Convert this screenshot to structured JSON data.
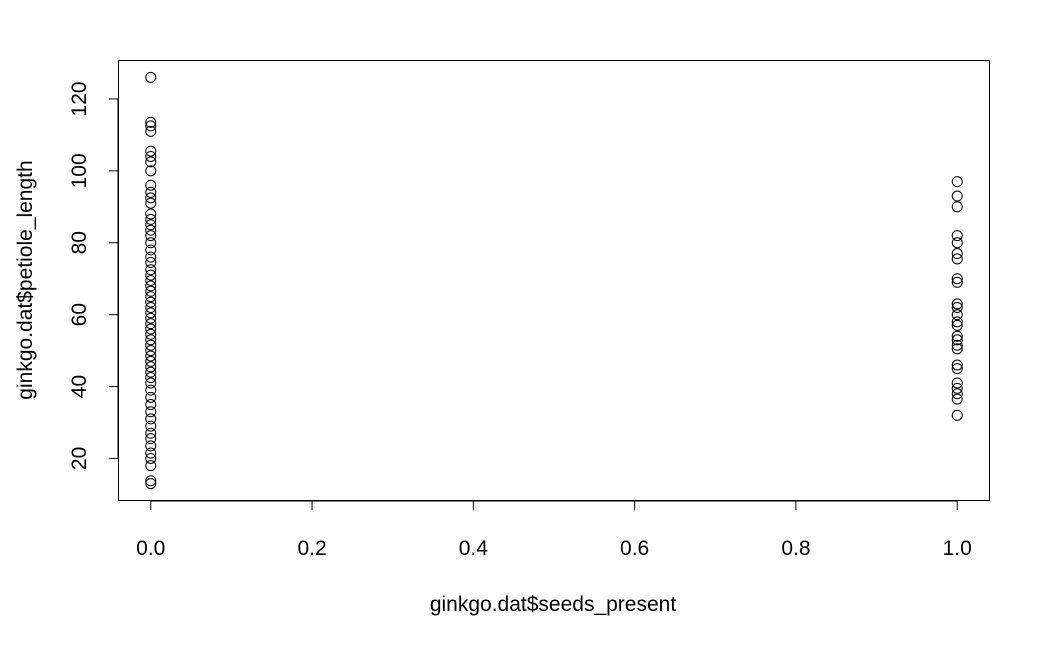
{
  "chart_data": {
    "type": "scatter",
    "title": "",
    "xlabel": "ginkgo.dat$seeds_present",
    "ylabel": "ginkgo.dat$petiole_length",
    "xlim": [
      -0.04,
      1.04
    ],
    "ylim": [
      8.3,
      130.7
    ],
    "xticks": [
      0.0,
      0.2,
      0.4,
      0.6,
      0.8,
      1.0
    ],
    "xtick_labels": [
      "0.0",
      "0.2",
      "0.4",
      "0.6",
      "0.8",
      "1.0"
    ],
    "yticks": [
      20,
      40,
      60,
      80,
      100,
      120
    ],
    "ytick_labels": [
      "20",
      "40",
      "60",
      "80",
      "100",
      "120"
    ],
    "grid": false,
    "legend": "none",
    "marker": "open-circle",
    "colors": {
      "point": "#000000",
      "axis": "#000000",
      "background": "#ffffff"
    },
    "points": [
      {
        "x": 0,
        "y": 126
      },
      {
        "x": 0,
        "y": 113.5
      },
      {
        "x": 0,
        "y": 112.5
      },
      {
        "x": 0,
        "y": 111
      },
      {
        "x": 0,
        "y": 105.5
      },
      {
        "x": 0,
        "y": 104
      },
      {
        "x": 0,
        "y": 102.5
      },
      {
        "x": 0,
        "y": 100
      },
      {
        "x": 0,
        "y": 96
      },
      {
        "x": 0,
        "y": 94
      },
      {
        "x": 0,
        "y": 92.5
      },
      {
        "x": 0,
        "y": 91
      },
      {
        "x": 0,
        "y": 88
      },
      {
        "x": 0,
        "y": 86.5
      },
      {
        "x": 0,
        "y": 85
      },
      {
        "x": 0,
        "y": 83.5
      },
      {
        "x": 0,
        "y": 82
      },
      {
        "x": 0,
        "y": 80
      },
      {
        "x": 0,
        "y": 78
      },
      {
        "x": 0,
        "y": 76
      },
      {
        "x": 0,
        "y": 74.5
      },
      {
        "x": 0,
        "y": 72.5
      },
      {
        "x": 0,
        "y": 71
      },
      {
        "x": 0,
        "y": 69.5
      },
      {
        "x": 0,
        "y": 68
      },
      {
        "x": 0,
        "y": 66.5
      },
      {
        "x": 0,
        "y": 65
      },
      {
        "x": 0,
        "y": 63.5
      },
      {
        "x": 0,
        "y": 62
      },
      {
        "x": 0,
        "y": 60.5
      },
      {
        "x": 0,
        "y": 59
      },
      {
        "x": 0,
        "y": 57.5
      },
      {
        "x": 0,
        "y": 56
      },
      {
        "x": 0,
        "y": 54.5
      },
      {
        "x": 0,
        "y": 53
      },
      {
        "x": 0,
        "y": 51.5
      },
      {
        "x": 0,
        "y": 50
      },
      {
        "x": 0,
        "y": 48.5
      },
      {
        "x": 0,
        "y": 47
      },
      {
        "x": 0,
        "y": 45.5
      },
      {
        "x": 0,
        "y": 44
      },
      {
        "x": 0,
        "y": 42.5
      },
      {
        "x": 0,
        "y": 41
      },
      {
        "x": 0,
        "y": 39
      },
      {
        "x": 0,
        "y": 37
      },
      {
        "x": 0,
        "y": 35
      },
      {
        "x": 0,
        "y": 33
      },
      {
        "x": 0,
        "y": 31
      },
      {
        "x": 0,
        "y": 29
      },
      {
        "x": 0,
        "y": 27
      },
      {
        "x": 0,
        "y": 25.5
      },
      {
        "x": 0,
        "y": 23.5
      },
      {
        "x": 0,
        "y": 21.5
      },
      {
        "x": 0,
        "y": 20
      },
      {
        "x": 0,
        "y": 18
      },
      {
        "x": 0,
        "y": 13.8
      },
      {
        "x": 0,
        "y": 13
      },
      {
        "x": 1,
        "y": 97
      },
      {
        "x": 1,
        "y": 93
      },
      {
        "x": 1,
        "y": 90
      },
      {
        "x": 1,
        "y": 82
      },
      {
        "x": 1,
        "y": 80
      },
      {
        "x": 1,
        "y": 77
      },
      {
        "x": 1,
        "y": 75.5
      },
      {
        "x": 1,
        "y": 70
      },
      {
        "x": 1,
        "y": 69
      },
      {
        "x": 1,
        "y": 63
      },
      {
        "x": 1,
        "y": 62
      },
      {
        "x": 1,
        "y": 60
      },
      {
        "x": 1,
        "y": 58
      },
      {
        "x": 1,
        "y": 57
      },
      {
        "x": 1,
        "y": 54
      },
      {
        "x": 1,
        "y": 53
      },
      {
        "x": 1,
        "y": 51.5
      },
      {
        "x": 1,
        "y": 50.5
      },
      {
        "x": 1,
        "y": 46
      },
      {
        "x": 1,
        "y": 45
      },
      {
        "x": 1,
        "y": 41
      },
      {
        "x": 1,
        "y": 39.5
      },
      {
        "x": 1,
        "y": 38
      },
      {
        "x": 1,
        "y": 36.5
      },
      {
        "x": 1,
        "y": 32
      }
    ]
  }
}
